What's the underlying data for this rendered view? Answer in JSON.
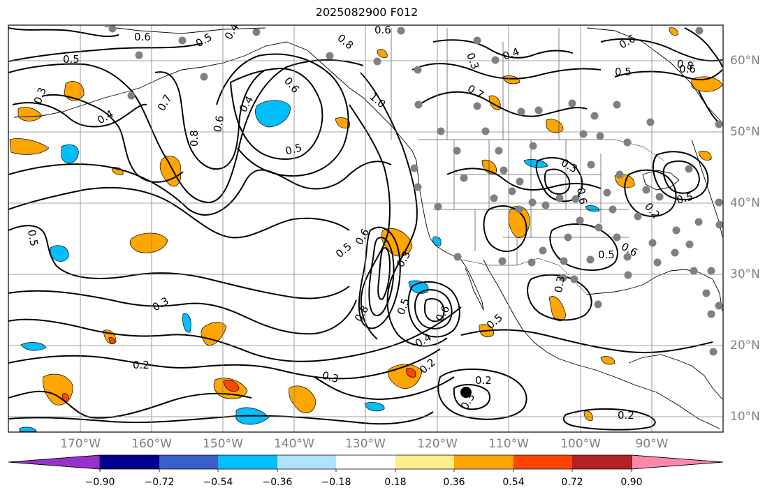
{
  "title": "2025082900 F012",
  "lon_labels": [
    "170°W",
    "160°W",
    "150°W",
    "140°W",
    "130°W",
    "120°W",
    "110°W",
    "100°W",
    "90°W"
  ],
  "lat_labels": [
    "60°N",
    "50°N",
    "40°N",
    "30°N",
    "20°N",
    "10°N"
  ],
  "contour_labels": [
    "0.6",
    "0.5",
    "0.4",
    "0.5",
    "0.8",
    "0.6",
    "0.3",
    "0.4",
    "0.7",
    "0.8",
    "0.6",
    "0.4",
    "0.6",
    "0.5",
    "1.0",
    "0.7",
    "0.4",
    "0.3",
    "0.5",
    "0.8",
    "0.6",
    "0.6",
    "0.5",
    "0.3",
    "0.6",
    "0.2",
    "0.5",
    "0.5",
    "0.6",
    "0.5",
    "0.6",
    "0.3",
    "0.8",
    "0.5",
    "0.6",
    "0.4",
    "0.2",
    "0.3",
    "0.3",
    "0.2",
    "0.2",
    "0.3",
    "0.2",
    "0.3",
    "0.5"
  ],
  "colorbar": {
    "ticks": [
      "−0.90",
      "−0.72",
      "−0.54",
      "−0.36",
      "−0.18",
      "0.18",
      "0.36",
      "0.54",
      "0.72",
      "0.90"
    ],
    "colors": [
      "#9932cc",
      "#00008b",
      "#3a5fcd",
      "#00bfff",
      "#b0e2ff",
      "#ffffff",
      "#ffec8b",
      "#ffa500",
      "#ff4500",
      "#b22222",
      "#ff88aa"
    ]
  },
  "colors": {
    "negative_fill": "#00bfff",
    "positive_fill": "#ffa500",
    "strong_positive_fill": "#ff4500",
    "station_dot": "#808080",
    "grid": "#808080",
    "label": "#7f7f7f"
  }
}
